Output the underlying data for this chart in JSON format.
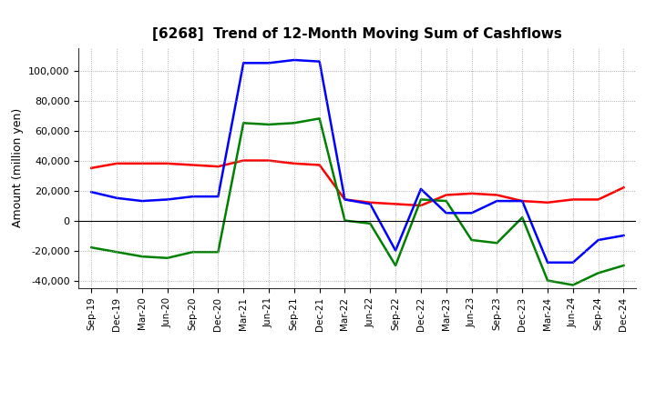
{
  "title": "[6268]  Trend of 12-Month Moving Sum of Cashflows",
  "ylabel": "Amount (million yen)",
  "background_color": "#ffffff",
  "grid_color": "#aaaaaa",
  "x_labels": [
    "Sep-19",
    "Dec-19",
    "Mar-20",
    "Jun-20",
    "Sep-20",
    "Dec-20",
    "Mar-21",
    "Jun-21",
    "Sep-21",
    "Dec-21",
    "Mar-22",
    "Jun-22",
    "Sep-22",
    "Dec-22",
    "Mar-23",
    "Jun-23",
    "Sep-23",
    "Dec-23",
    "Mar-24",
    "Jun-24",
    "Sep-24",
    "Dec-24"
  ],
  "operating_cashflow": [
    35000,
    38000,
    38000,
    38000,
    37000,
    36000,
    40000,
    40000,
    38000,
    37000,
    14000,
    12000,
    11000,
    10000,
    17000,
    18000,
    17000,
    13000,
    12000,
    14000,
    14000,
    22000
  ],
  "investing_cashflow": [
    -18000,
    -21000,
    -24000,
    -25000,
    -21000,
    -21000,
    65000,
    64000,
    65000,
    68000,
    0,
    -2000,
    -30000,
    14000,
    13000,
    -13000,
    -15000,
    2000,
    -40000,
    -43000,
    -35000,
    -30000
  ],
  "free_cashflow": [
    19000,
    15000,
    13000,
    14000,
    16000,
    16000,
    105000,
    105000,
    107000,
    106000,
    14000,
    11000,
    -20000,
    21000,
    5000,
    5000,
    13000,
    13000,
    -28000,
    -28000,
    -13000,
    -10000
  ],
  "operating_color": "#ff0000",
  "investing_color": "#008000",
  "free_color": "#0000ff",
  "ylim": [
    -45000,
    115000
  ],
  "yticks": [
    -40000,
    -20000,
    0,
    20000,
    40000,
    60000,
    80000,
    100000
  ]
}
